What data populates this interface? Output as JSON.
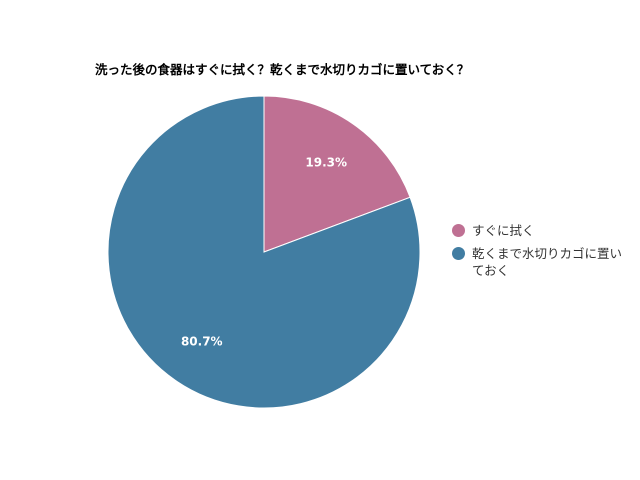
{
  "chart_data": {
    "type": "pie",
    "title": "洗った後の食器はすぐに拭く？乾くまで水切りカゴに置いておく？",
    "slices": [
      {
        "label": "すぐに拭く",
        "value": 19.3,
        "display": "19.3%",
        "color": "#bf7093"
      },
      {
        "label": "乾くまで水切りカゴに置いておく",
        "value": 80.7,
        "display": "80.7%",
        "color": "#417da2"
      }
    ],
    "legend_position": "right",
    "start_angle": "top, clockwise"
  }
}
